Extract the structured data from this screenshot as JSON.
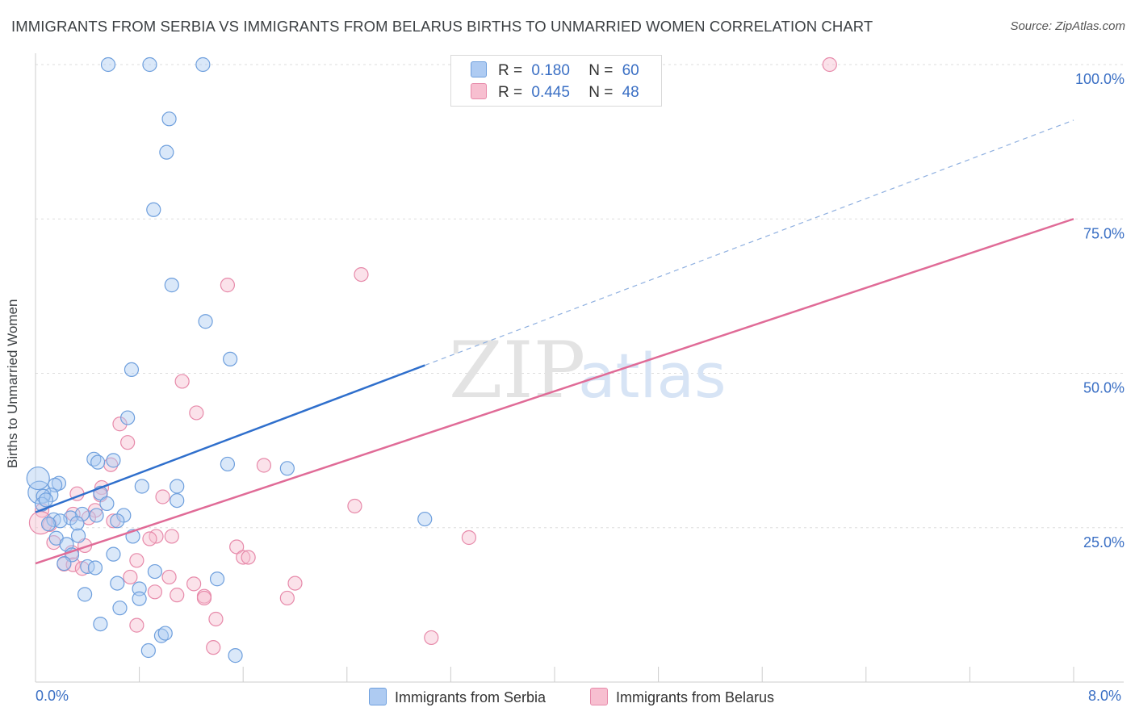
{
  "title": "IMMIGRANTS FROM SERBIA VS IMMIGRANTS FROM BELARUS BIRTHS TO UNMARRIED WOMEN CORRELATION CHART",
  "source": "Source: ZipAtlas.com",
  "watermark": {
    "zip": "ZIP",
    "atlas": "atlas"
  },
  "legend": {
    "r_label": "R =",
    "n_label": "N =",
    "serbia": {
      "r": "0.180",
      "n": "60"
    },
    "belarus": {
      "r": "0.445",
      "n": "48"
    }
  },
  "colors": {
    "serbia_fill": "#aecbf2",
    "serbia_stroke": "#6e9fdd",
    "serbia_line": "#2f6fcc",
    "belarus_fill": "#f7bfd0",
    "belarus_stroke": "#e78aaa",
    "belarus_line": "#e06b97",
    "grid": "#dddddd",
    "axis_text": "#3a6fc4"
  },
  "chart_data": {
    "type": "scatter",
    "title": "IMMIGRANTS FROM SERBIA VS IMMIGRANTS FROM BELARUS BIRTHS TO UNMARRIED WOMEN CORRELATION CHART",
    "xlabel": "",
    "ylabel": "Births to Unmarried Women",
    "xlim": [
      0,
      8
    ],
    "ylim": [
      0,
      100
    ],
    "x_tick_labels": [
      "0.0%",
      "8.0%"
    ],
    "y_ticks": [
      25,
      50,
      75,
      100
    ],
    "y_tick_labels": [
      "25.0%",
      "50.0%",
      "75.0%",
      "100.0%"
    ],
    "grid": true,
    "series": [
      {
        "name": "Immigrants from Serbia",
        "trend": {
          "x0": 0.0,
          "y0": 27.5,
          "x1": 3.0,
          "y1": 51.3,
          "dash_to_x": 8.0,
          "dash_to_y": 91.0
        },
        "points": [
          [
            0.56,
            100
          ],
          [
            0.88,
            100
          ],
          [
            1.29,
            100
          ],
          [
            1.03,
            91.2
          ],
          [
            1.01,
            85.8
          ],
          [
            0.91,
            76.5
          ],
          [
            1.05,
            64.3
          ],
          [
            1.31,
            58.4
          ],
          [
            1.5,
            52.3
          ],
          [
            0.74,
            50.6
          ],
          [
            0.71,
            42.8
          ],
          [
            0.45,
            36.1
          ],
          [
            0.6,
            35.9
          ],
          [
            0.48,
            35.6
          ],
          [
            1.48,
            35.3
          ],
          [
            1.94,
            34.6
          ],
          [
            0.18,
            32.2
          ],
          [
            0.15,
            31.9
          ],
          [
            0.82,
            31.7
          ],
          [
            1.09,
            31.7
          ],
          [
            0.03,
            30.7
          ],
          [
            0.12,
            30.3
          ],
          [
            0.06,
            30.1
          ],
          [
            0.5,
            30.6
          ],
          [
            0.55,
            28.9
          ],
          [
            1.09,
            29.4
          ],
          [
            0.05,
            28.8
          ],
          [
            0.36,
            27.2
          ],
          [
            0.47,
            27.0
          ],
          [
            0.68,
            27.0
          ],
          [
            0.27,
            26.6
          ],
          [
            0.14,
            26.3
          ],
          [
            0.19,
            26.1
          ],
          [
            0.63,
            26.1
          ],
          [
            0.32,
            25.7
          ],
          [
            0.1,
            25.6
          ],
          [
            0.33,
            23.7
          ],
          [
            0.75,
            23.6
          ],
          [
            0.16,
            23.3
          ],
          [
            3.0,
            26.4
          ],
          [
            0.24,
            22.3
          ],
          [
            0.28,
            20.6
          ],
          [
            0.6,
            20.7
          ],
          [
            0.22,
            19.2
          ],
          [
            0.4,
            18.7
          ],
          [
            0.46,
            18.5
          ],
          [
            0.92,
            17.9
          ],
          [
            1.4,
            16.7
          ],
          [
            0.63,
            16.0
          ],
          [
            0.8,
            15.1
          ],
          [
            0.38,
            14.2
          ],
          [
            0.8,
            13.5
          ],
          [
            0.65,
            12.0
          ],
          [
            0.5,
            9.4
          ],
          [
            0.97,
            7.5
          ],
          [
            1.0,
            7.9
          ],
          [
            0.87,
            5.1
          ],
          [
            1.54,
            4.3
          ],
          [
            0.02,
            33.0
          ],
          [
            0.08,
            29.5
          ]
        ]
      },
      {
        "name": "Immigrants from Belarus",
        "trend": {
          "x0": 0.0,
          "y0": 19.2,
          "x1": 8.0,
          "y1": 75.0
        },
        "points": [
          [
            6.12,
            100
          ],
          [
            2.51,
            66.0
          ],
          [
            1.48,
            64.3
          ],
          [
            1.13,
            48.7
          ],
          [
            1.24,
            43.6
          ],
          [
            0.65,
            41.8
          ],
          [
            0.71,
            38.8
          ],
          [
            0.58,
            35.2
          ],
          [
            1.76,
            35.1
          ],
          [
            0.51,
            31.5
          ],
          [
            0.32,
            30.5
          ],
          [
            0.98,
            30.0
          ],
          [
            0.5,
            30.3
          ],
          [
            2.46,
            28.5
          ],
          [
            0.05,
            27.8
          ],
          [
            0.29,
            27.2
          ],
          [
            0.46,
            27.8
          ],
          [
            0.6,
            26.1
          ],
          [
            0.41,
            26.6
          ],
          [
            0.11,
            25.5
          ],
          [
            0.04,
            25.8
          ],
          [
            1.05,
            23.6
          ],
          [
            0.93,
            23.6
          ],
          [
            0.88,
            23.2
          ],
          [
            3.34,
            23.4
          ],
          [
            0.14,
            22.6
          ],
          [
            0.38,
            22.1
          ],
          [
            1.55,
            21.9
          ],
          [
            0.28,
            21.0
          ],
          [
            1.6,
            20.2
          ],
          [
            1.64,
            20.2
          ],
          [
            0.78,
            19.7
          ],
          [
            0.22,
            19.1
          ],
          [
            0.29,
            19.0
          ],
          [
            0.36,
            18.4
          ],
          [
            1.03,
            17.0
          ],
          [
            0.73,
            17.0
          ],
          [
            2.0,
            16.0
          ],
          [
            1.22,
            15.9
          ],
          [
            0.92,
            14.6
          ],
          [
            1.09,
            14.1
          ],
          [
            1.3,
            13.9
          ],
          [
            1.3,
            13.6
          ],
          [
            1.94,
            13.6
          ],
          [
            1.39,
            10.2
          ],
          [
            0.78,
            9.2
          ],
          [
            3.05,
            7.2
          ],
          [
            1.37,
            5.6
          ]
        ]
      }
    ]
  },
  "bottom_legend": {
    "serbia": "Immigrants from Serbia",
    "belarus": "Immigrants from Belarus"
  }
}
